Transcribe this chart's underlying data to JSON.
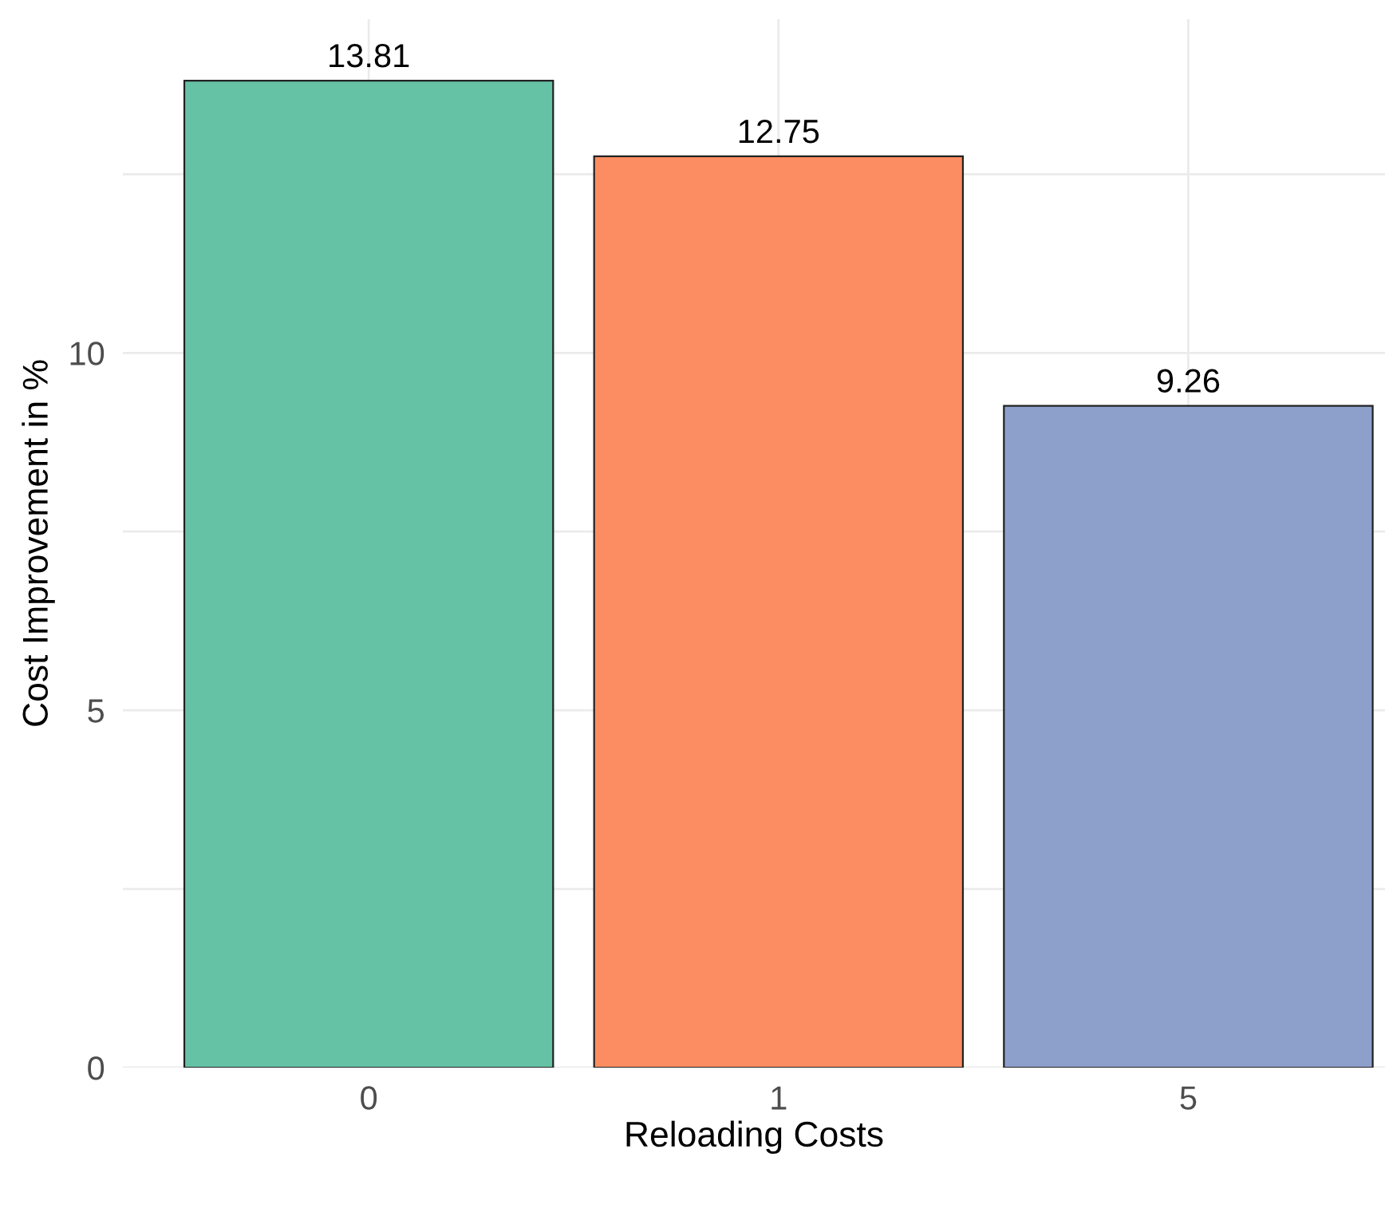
{
  "chart_data": {
    "type": "bar",
    "xlabel": "Reloading Costs",
    "ylabel": "Cost Improvement in %",
    "categories": [
      "0",
      "1",
      "5"
    ],
    "values": [
      13.81,
      12.75,
      9.26
    ],
    "colors": [
      "#66c2a5",
      "#fc8d62",
      "#8da0cb"
    ],
    "ylim": [
      0,
      14.67
    ],
    "yticks": [
      0,
      {
        "value": 2.5,
        "label": null
      },
      5,
      {
        "value": 7.5,
        "label": null
      },
      10,
      {
        "value": 12.5,
        "label": null
      }
    ],
    "grid": true,
    "data_labels": true
  }
}
